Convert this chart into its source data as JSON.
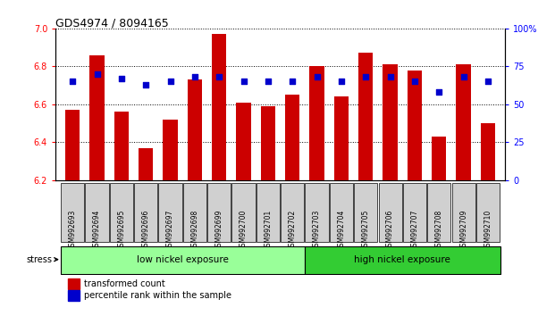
{
  "title": "GDS4974 / 8094165",
  "samples": [
    "GSM992693",
    "GSM992694",
    "GSM992695",
    "GSM992696",
    "GSM992697",
    "GSM992698",
    "GSM992699",
    "GSM992700",
    "GSM992701",
    "GSM992702",
    "GSM992703",
    "GSM992704",
    "GSM992705",
    "GSM992706",
    "GSM992707",
    "GSM992708",
    "GSM992709",
    "GSM992710"
  ],
  "transformed_count": [
    6.57,
    6.86,
    6.56,
    6.37,
    6.52,
    6.73,
    6.97,
    6.61,
    6.59,
    6.65,
    6.8,
    6.64,
    6.87,
    6.81,
    6.78,
    6.43,
    6.81,
    6.5
  ],
  "percentile_rank": [
    65,
    70,
    67,
    63,
    65,
    68,
    68,
    65,
    65,
    65,
    68,
    65,
    68,
    68,
    65,
    58,
    68,
    65
  ],
  "ylim_left": [
    6.2,
    7.0
  ],
  "ylim_right": [
    0,
    100
  ],
  "yticks_left": [
    6.2,
    6.4,
    6.6,
    6.8,
    7.0
  ],
  "yticks_right": [
    0,
    25,
    50,
    75,
    100
  ],
  "ytick_labels_right": [
    "0",
    "25",
    "50",
    "75",
    "100%"
  ],
  "bar_color": "#cc0000",
  "dot_color": "#0000cc",
  "bar_bottom": 6.2,
  "group1_label": "low nickel exposure",
  "group2_label": "high nickel exposure",
  "group1_count": 10,
  "group_color1": "#99ff99",
  "group_color2": "#33cc33",
  "stress_label": "stress",
  "legend_bar_label": "transformed count",
  "legend_dot_label": "percentile rank within the sample",
  "plot_bg": "#ffffff",
  "tick_box_color": "#d0d0d0"
}
